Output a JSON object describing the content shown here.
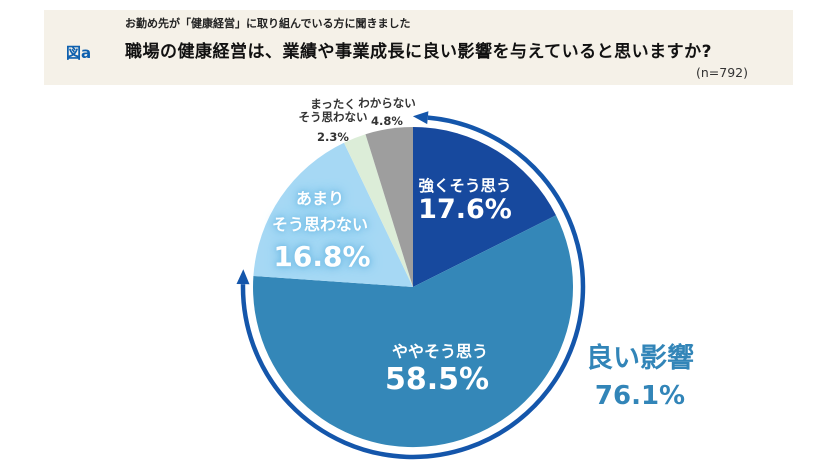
{
  "header": {
    "figure_label": "図a",
    "note": "お勤め先が「健康経営」に取り組んでいる方に聞きました",
    "title": "職場の健康経営は、業績や事業成長に良い影響を与えていると思いますか?",
    "sample_size": "(n=792)",
    "background_color": "#f5f1e8",
    "figure_label_color": "#0c5fae"
  },
  "chart_data": {
    "type": "pie",
    "title": "職場の健康経営は、業績や事業成長に良い影響を与えていると思いますか?",
    "n": 792,
    "start_angle_deg": 0,
    "direction": "clockwise",
    "slices": [
      {
        "key": "strongly",
        "label": "強くそう思う",
        "pct": 17.6,
        "color": "#17499e",
        "text_color": "#ffffff"
      },
      {
        "key": "somewhat",
        "label": "ややそう思う",
        "pct": 58.5,
        "color": "#3487b8",
        "text_color": "#ffffff"
      },
      {
        "key": "not_really",
        "label": "あまりそう思わない",
        "pct": 16.8,
        "color": "#a6d8f4",
        "text_color": "#ffffff"
      },
      {
        "key": "not_at_all",
        "label": "まったくそう思わない",
        "pct": 2.3,
        "color": "#dcedd8",
        "text_color": "#333333"
      },
      {
        "key": "dont_know",
        "label": "わからない",
        "pct": 4.8,
        "color": "#9e9e9e",
        "text_color": "#333333"
      }
    ],
    "aggregate_annotation": {
      "label": "良い影響",
      "pct": 76.1,
      "covers": [
        "強くそう思う",
        "ややそう思う"
      ],
      "arc_color": "#1456ab",
      "text_color": "#3285b8"
    }
  },
  "labels": {
    "strongly": {
      "name": "強くそう思う",
      "pct": "17.6%"
    },
    "somewhat": {
      "name": "ややそう思う",
      "pct": "58.5%"
    },
    "not_really": {
      "line1": "あまり",
      "line2": "そう思わない",
      "pct": "16.8%"
    },
    "not_at_all": {
      "line1": "まったく",
      "line2": "そう思わない",
      "pct": "2.3%"
    },
    "dont_know": {
      "name": "わからない",
      "pct": "4.8%"
    },
    "good": {
      "name": "良い影響",
      "pct": "76.1%"
    }
  }
}
